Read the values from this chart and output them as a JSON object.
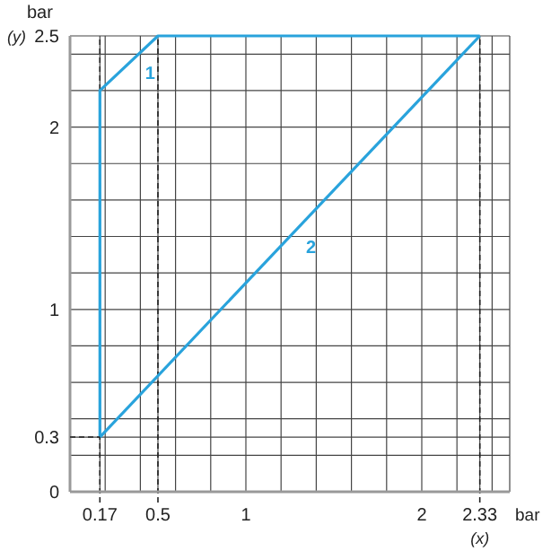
{
  "chart_data": {
    "type": "line",
    "xlabel": "bar",
    "ylabel": "bar",
    "annotations": [
      "(y)",
      "(x)"
    ],
    "xlim": [
      0,
      2.5
    ],
    "ylim": [
      0,
      2.5
    ],
    "xticks": [
      {
        "value": 0,
        "label": null
      },
      0.17,
      {
        "value": 0.2,
        "label": null
      },
      {
        "value": 0.4,
        "label": null
      },
      0.5,
      {
        "value": 0.6,
        "label": null
      },
      {
        "value": 0.8,
        "label": null
      },
      1,
      {
        "value": 1.2,
        "label": null
      },
      {
        "value": 1.4,
        "label": null
      },
      {
        "value": 1.6,
        "label": null
      },
      {
        "value": 1.8,
        "label": null
      },
      2,
      {
        "value": 2.2,
        "label": null
      },
      2.33,
      {
        "value": 2.4,
        "label": null
      },
      {
        "value": 2.5,
        "label": null
      }
    ],
    "yticks": [
      0,
      {
        "value": 0.2,
        "label": null
      },
      0.3,
      {
        "value": 0.4,
        "label": null
      },
      {
        "value": 0.6,
        "label": null
      },
      {
        "value": 0.8,
        "label": null
      },
      1,
      {
        "value": 1.2,
        "label": null
      },
      {
        "value": 1.4,
        "label": null
      },
      {
        "value": 1.6,
        "label": null
      },
      {
        "value": 1.8,
        "label": null
      },
      2,
      {
        "value": 2.2,
        "label": null
      },
      {
        "value": 2.4,
        "label": null
      },
      2.5
    ],
    "grid": true,
    "marker": "none",
    "ref_lines": [
      {
        "axis": "x",
        "value": 0.17,
        "line_style": "dashed",
        "color": "#222222"
      },
      {
        "axis": "x",
        "value": 0.5,
        "line_style": "dashed",
        "color": "#222222"
      },
      {
        "axis": "x",
        "value": 2.33,
        "line_style": "dashed",
        "color": "#222222"
      }
    ],
    "series": [
      {
        "name": "1",
        "color": "#29a3dc",
        "x": [
          0.17,
          0.17,
          0.5,
          2.33
        ],
        "values": [
          0.3,
          2.2,
          2.5,
          2.5
        ]
      },
      {
        "name": "2",
        "color": "#29a3dc",
        "x": [
          0.17,
          2.33
        ],
        "values": [
          0.3,
          2.5
        ]
      },
      {
        "color": "#222222",
        "line_style": "dashed",
        "x": [
          0,
          0.17
        ],
        "values": [
          0.3,
          0.3
        ]
      }
    ]
  }
}
